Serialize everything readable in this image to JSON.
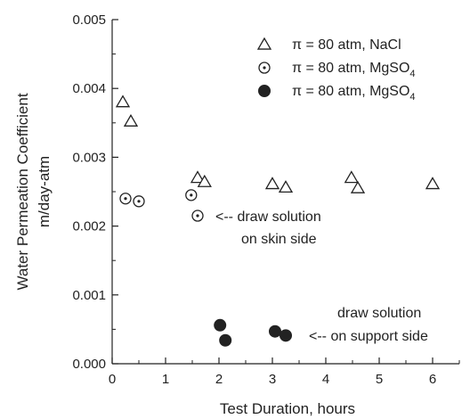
{
  "chart_data": {
    "type": "scatter",
    "title": "",
    "xlabel": "Test Duration, hours",
    "ylabel_lines": [
      "Water Permeation Coefficient",
      "m/day-atm"
    ],
    "xlim": [
      0,
      6.5
    ],
    "ylim": [
      0,
      0.005
    ],
    "x_ticks": [
      0,
      1,
      2,
      3,
      4,
      5,
      6
    ],
    "x_tick_labels": [
      "0",
      "1",
      "2",
      "3",
      "4",
      "5",
      "6"
    ],
    "y_ticks": [
      0,
      0.001,
      0.002,
      0.003,
      0.004,
      0.005
    ],
    "y_tick_labels": [
      "0.000",
      "0.001",
      "0.002",
      "0.003",
      "0.004",
      "0.005"
    ],
    "grid": false,
    "legend_position": "top-right",
    "series": [
      {
        "name": "π = 80 atm, NaCl",
        "marker": "open-triangle",
        "color": "#222222",
        "points": [
          [
            0.2,
            0.0038
          ],
          [
            0.35,
            0.00352
          ],
          [
            1.6,
            0.0027
          ],
          [
            1.73,
            0.00264
          ],
          [
            3.0,
            0.00261
          ],
          [
            3.25,
            0.00256
          ],
          [
            4.48,
            0.0027
          ],
          [
            4.6,
            0.00255
          ],
          [
            6.0,
            0.00261
          ]
        ]
      },
      {
        "name": "π = 80 atm, MgSO4",
        "name_parts": [
          "π = 80 atm, MgSO",
          "4"
        ],
        "marker": "dotted-circle",
        "color": "#222222",
        "points": [
          [
            0.25,
            0.0024
          ],
          [
            0.5,
            0.00236
          ],
          [
            1.48,
            0.00245
          ],
          [
            1.6,
            0.00215
          ]
        ]
      },
      {
        "name": "π = 80 atm, MgSO4",
        "name_parts": [
          "π = 80 atm, MgSO",
          "4"
        ],
        "marker": "filled-circle",
        "color": "#222222",
        "points": [
          [
            2.02,
            0.00056
          ],
          [
            2.12,
            0.00034
          ],
          [
            3.05,
            0.00047
          ],
          [
            3.25,
            0.00041
          ]
        ]
      }
    ],
    "annotations": [
      {
        "lines": [
          "<-- draw solution",
          "on skin side"
        ]
      },
      {
        "lines": [
          "draw solution",
          "<-- on support side"
        ]
      }
    ]
  }
}
